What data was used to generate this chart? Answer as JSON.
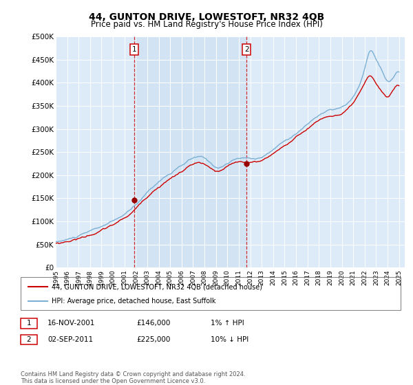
{
  "title": "44, GUNTON DRIVE, LOWESTOFT, NR32 4QB",
  "subtitle": "Price paid vs. HM Land Registry's House Price Index (HPI)",
  "title_fontsize": 10,
  "subtitle_fontsize": 8.5,
  "ylabel_ticks": [
    "£0",
    "£50K",
    "£100K",
    "£150K",
    "£200K",
    "£250K",
    "£300K",
    "£350K",
    "£400K",
    "£450K",
    "£500K"
  ],
  "ytick_vals": [
    0,
    50000,
    100000,
    150000,
    200000,
    250000,
    300000,
    350000,
    400000,
    450000,
    500000
  ],
  "ylim": [
    0,
    500000
  ],
  "xlim_start": 1995.0,
  "xlim_end": 2025.5,
  "chart_bg": "#ddeaf7",
  "grid_color": "#ffffff",
  "vline_color": "#cc0000",
  "vline_x": [
    2001.88,
    2011.67
  ],
  "vline_labels": [
    "1",
    "2"
  ],
  "sale_marker_color": "#990000",
  "sale_dates": [
    2001.88,
    2011.67
  ],
  "sale_prices": [
    146000,
    225000
  ],
  "legend_line1": "44, GUNTON DRIVE, LOWESTOFT, NR32 4QB (detached house)",
  "legend_line2": "HPI: Average price, detached house, East Suffolk",
  "annotation1_num": "1",
  "annotation1_date": "16-NOV-2001",
  "annotation1_price": "£146,000",
  "annotation1_hpi": "1% ↑ HPI",
  "annotation2_num": "2",
  "annotation2_date": "02-SEP-2011",
  "annotation2_price": "£225,000",
  "annotation2_hpi": "10% ↓ HPI",
  "footer": "Contains HM Land Registry data © Crown copyright and database right 2024.\nThis data is licensed under the Open Government Licence v3.0.",
  "hpi_color": "#7bafd4",
  "price_color": "#cc0000"
}
